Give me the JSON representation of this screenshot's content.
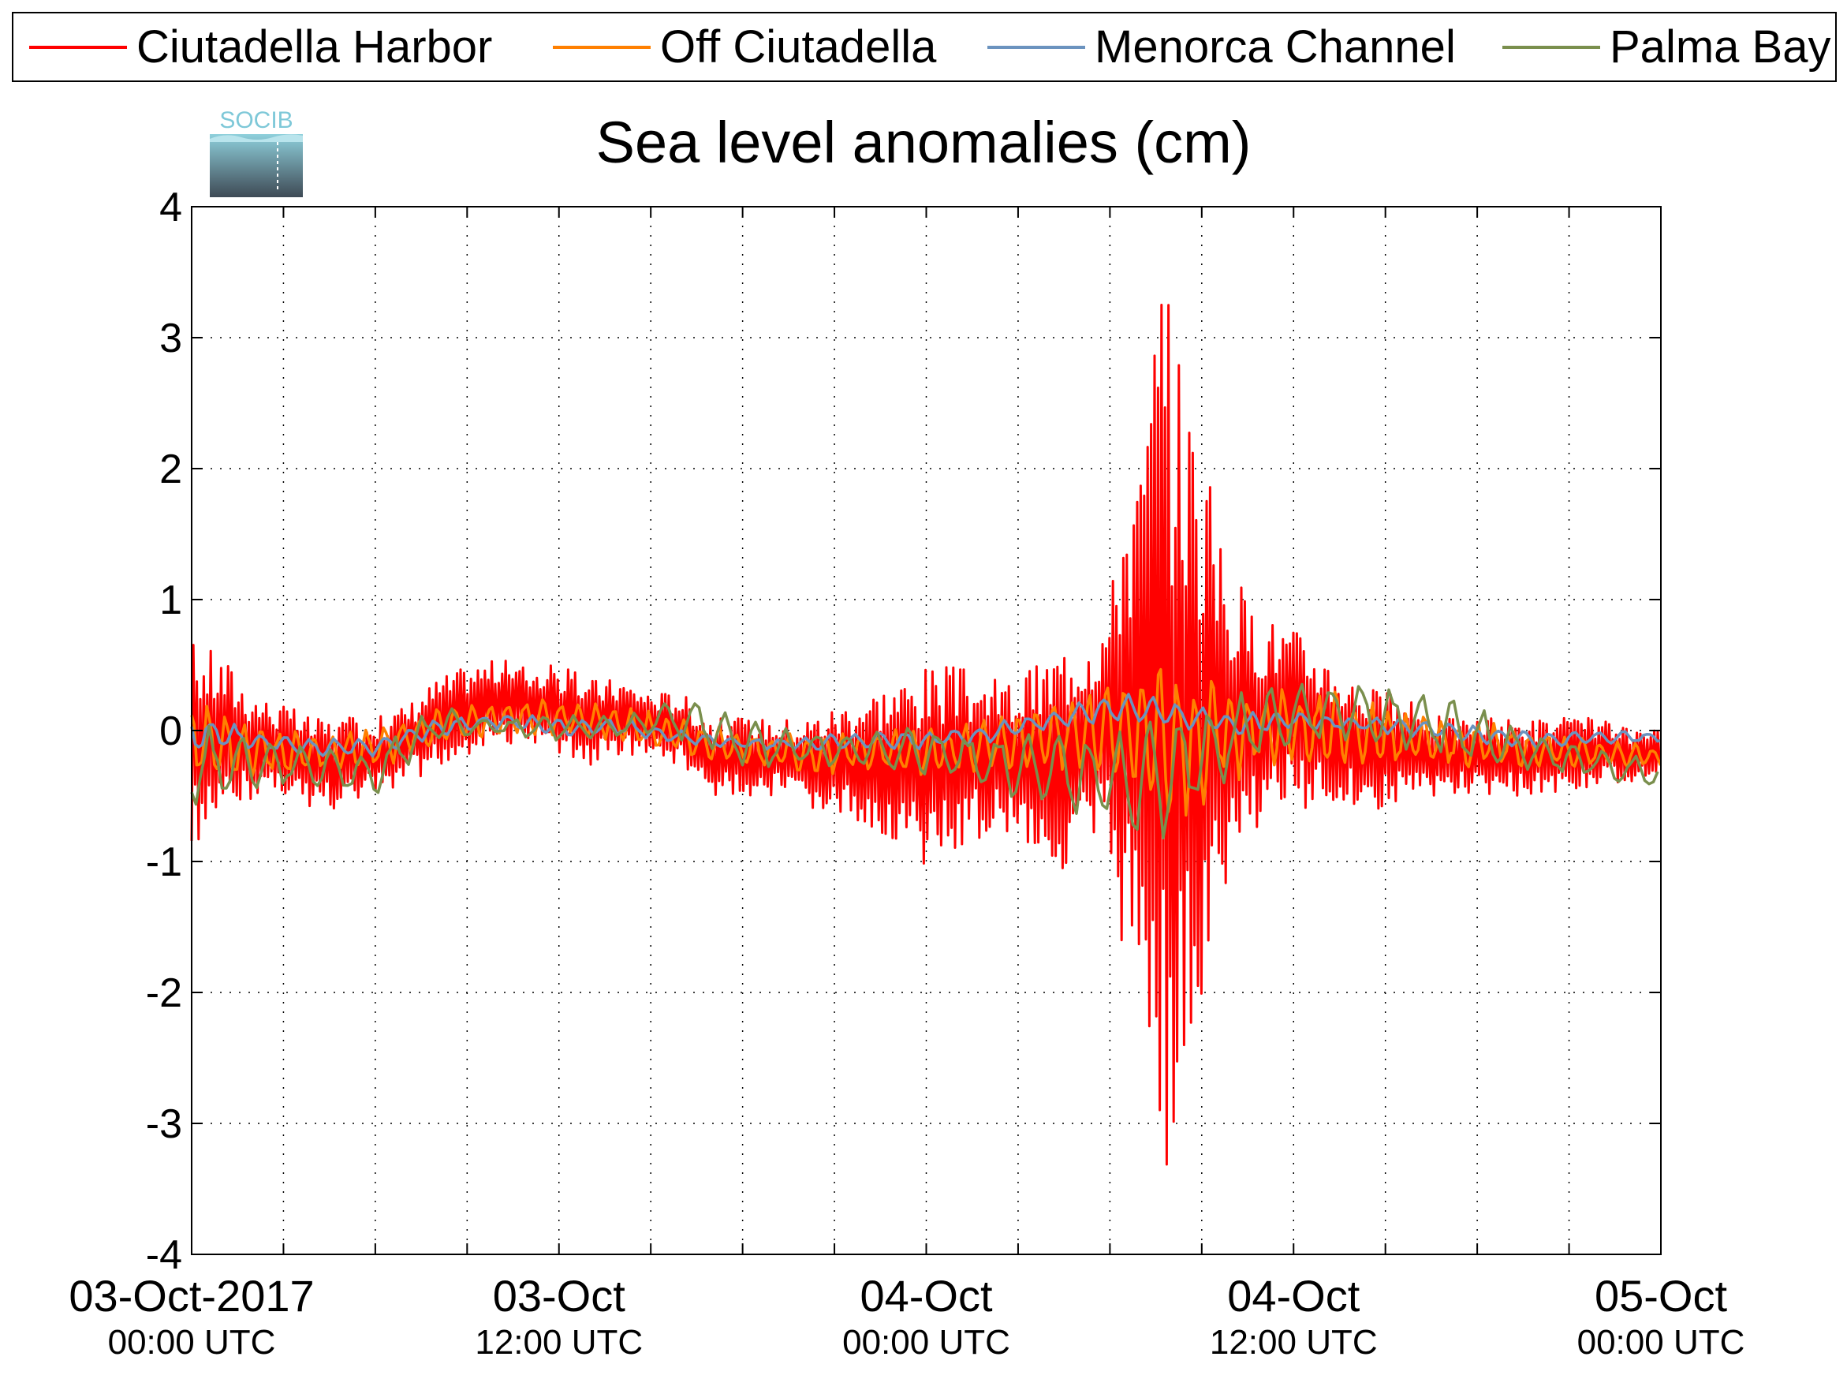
{
  "logo": {
    "text": "SOCIB",
    "colors": {
      "text": "#7ec8d8",
      "top": "#8fd0dc",
      "bottom": "#3e4a55"
    }
  },
  "chart_data": {
    "type": "line",
    "title": "Sea level anomalies (cm)",
    "xlabel": "",
    "ylabel": "",
    "ylim": [
      -4,
      4
    ],
    "xlim": [
      "2017-10-03T00:00Z",
      "2017-10-05T00:00Z"
    ],
    "grid": true,
    "legend_position": "top",
    "y_ticks": [
      "-4",
      "-3",
      "-2",
      "-1",
      "0",
      "1",
      "2",
      "3",
      "4"
    ],
    "x_ticks": [
      {
        "date": "03-Oct-2017",
        "time": "00:00 UTC"
      },
      {
        "date": "03-Oct",
        "time": "12:00 UTC"
      },
      {
        "date": "04-Oct",
        "time": "00:00 UTC"
      },
      {
        "date": "04-Oct",
        "time": "12:00 UTC"
      },
      {
        "date": "05-Oct",
        "time": "00:00 UTC"
      }
    ],
    "series": [
      {
        "name": "Ciutadella Harbor",
        "color": "#ff0000",
        "x": [
          "2017-10-03T00:00Z",
          "2017-10-03T01:00Z",
          "2017-10-03T02:00Z",
          "2017-10-03T03:00Z",
          "2017-10-03T04:00Z",
          "2017-10-03T05:00Z",
          "2017-10-03T06:00Z",
          "2017-10-03T07:00Z",
          "2017-10-03T08:00Z",
          "2017-10-03T09:00Z",
          "2017-10-03T10:00Z",
          "2017-10-03T11:00Z",
          "2017-10-03T12:00Z",
          "2017-10-03T13:00Z",
          "2017-10-03T14:00Z",
          "2017-10-03T15:00Z",
          "2017-10-03T16:00Z",
          "2017-10-03T17:00Z",
          "2017-10-03T18:00Z",
          "2017-10-03T19:00Z",
          "2017-10-03T20:00Z",
          "2017-10-03T21:00Z",
          "2017-10-03T22:00Z",
          "2017-10-03T23:00Z",
          "2017-10-04T00:00Z",
          "2017-10-04T01:00Z",
          "2017-10-04T02:00Z",
          "2017-10-04T03:00Z",
          "2017-10-04T04:00Z",
          "2017-10-04T05:00Z",
          "2017-10-04T06:00Z",
          "2017-10-04T06:30Z",
          "2017-10-04T07:00Z",
          "2017-10-04T07:30Z",
          "2017-10-04T08:00Z",
          "2017-10-04T08:30Z",
          "2017-10-04T09:00Z",
          "2017-10-04T09:30Z",
          "2017-10-04T10:00Z",
          "2017-10-04T10:30Z",
          "2017-10-04T11:00Z",
          "2017-10-04T12:00Z",
          "2017-10-04T13:00Z",
          "2017-10-04T14:00Z",
          "2017-10-04T15:00Z",
          "2017-10-04T16:00Z",
          "2017-10-04T17:00Z",
          "2017-10-04T18:00Z",
          "2017-10-04T19:00Z",
          "2017-10-04T20:00Z",
          "2017-10-04T21:00Z",
          "2017-10-04T22:00Z",
          "2017-10-04T23:00Z",
          "2017-10-05T00:00Z"
        ],
        "min": [
          -0.9,
          -0.8,
          -0.5,
          -0.5,
          -0.6,
          -0.6,
          -0.5,
          -0.4,
          -0.3,
          -0.2,
          -0.1,
          -0.1,
          -0.2,
          -0.3,
          -0.2,
          -0.2,
          -0.3,
          -0.5,
          -0.5,
          -0.5,
          -0.6,
          -0.7,
          -0.7,
          -0.9,
          -1.05,
          -0.9,
          -0.8,
          -0.8,
          -1.1,
          -1.0,
          -1.0,
          -2.0,
          -2.1,
          -2.8,
          -3.75,
          -2.7,
          -2.5,
          -1.6,
          -1.3,
          -0.9,
          -0.7,
          -0.6,
          -0.6,
          -0.6,
          -0.6,
          -0.5,
          -0.5,
          -0.5,
          -0.5,
          -0.5,
          -0.5,
          -0.4,
          -0.4,
          -0.3
        ],
        "max": [
          0.7,
          0.6,
          0.3,
          0.2,
          0.1,
          0.1,
          0.1,
          0.2,
          0.4,
          0.5,
          0.55,
          0.5,
          0.5,
          0.4,
          0.4,
          0.3,
          0.3,
          0.1,
          0.1,
          0.1,
          0.1,
          0.2,
          0.3,
          0.4,
          0.5,
          0.5,
          0.4,
          0.4,
          0.6,
          0.8,
          1.0,
          2.1,
          2.1,
          3.3,
          3.42,
          2.7,
          2.3,
          1.6,
          1.3,
          1.0,
          0.9,
          0.8,
          0.6,
          0.4,
          0.3,
          0.2,
          0.1,
          0.1,
          0.1,
          0.1,
          0.1,
          0.1,
          0.0,
          0.0
        ]
      },
      {
        "name": "Off Ciutadella",
        "color": "#ff8000",
        "x": [
          "2017-10-03T00:00Z",
          "2017-10-03T02:00Z",
          "2017-10-03T04:00Z",
          "2017-10-03T06:00Z",
          "2017-10-03T08:00Z",
          "2017-10-03T10:00Z",
          "2017-10-03T12:00Z",
          "2017-10-03T14:00Z",
          "2017-10-03T16:00Z",
          "2017-10-03T18:00Z",
          "2017-10-03T20:00Z",
          "2017-10-03T22:00Z",
          "2017-10-04T00:00Z",
          "2017-10-04T02:00Z",
          "2017-10-04T04:00Z",
          "2017-10-04T06:00Z",
          "2017-10-04T07:00Z",
          "2017-10-04T08:00Z",
          "2017-10-04T09:00Z",
          "2017-10-04T10:00Z",
          "2017-10-04T12:00Z",
          "2017-10-04T14:00Z",
          "2017-10-04T16:00Z",
          "2017-10-04T18:00Z",
          "2017-10-04T20:00Z",
          "2017-10-04T22:00Z",
          "2017-10-05T00:00Z"
        ],
        "min": [
          -0.5,
          -0.4,
          -0.35,
          -0.3,
          -0.15,
          -0.05,
          -0.05,
          -0.1,
          -0.2,
          -0.3,
          -0.35,
          -0.35,
          -0.4,
          -0.35,
          -0.3,
          -0.4,
          -0.6,
          -0.8,
          -0.6,
          -0.4,
          -0.3,
          -0.3,
          -0.3,
          -0.3,
          -0.3,
          -0.3,
          -0.3
        ],
        "max": [
          0.35,
          0.1,
          0.0,
          0.05,
          0.2,
          0.25,
          0.25,
          0.2,
          0.1,
          0.0,
          0.0,
          0.05,
          0.05,
          0.1,
          0.2,
          0.4,
          0.6,
          0.6,
          0.5,
          0.4,
          0.35,
          0.3,
          0.15,
          0.1,
          0.0,
          -0.05,
          -0.1
        ]
      },
      {
        "name": "Menorca Channel",
        "color": "#6b93bf",
        "x": [
          "2017-10-03T00:00Z",
          "2017-10-03T02:00Z",
          "2017-10-03T04:00Z",
          "2017-10-03T06:00Z",
          "2017-10-03T08:00Z",
          "2017-10-03T10:00Z",
          "2017-10-03T12:00Z",
          "2017-10-03T14:00Z",
          "2017-10-03T16:00Z",
          "2017-10-03T18:00Z",
          "2017-10-03T20:00Z",
          "2017-10-03T22:00Z",
          "2017-10-04T00:00Z",
          "2017-10-04T02:00Z",
          "2017-10-04T04:00Z",
          "2017-10-04T06:00Z",
          "2017-10-04T08:00Z",
          "2017-10-04T10:00Z",
          "2017-10-04T12:00Z",
          "2017-10-04T14:00Z",
          "2017-10-04T16:00Z",
          "2017-10-04T18:00Z",
          "2017-10-04T20:00Z",
          "2017-10-04T22:00Z",
          "2017-10-05T00:00Z"
        ],
        "min": [
          -0.2,
          -0.15,
          -0.2,
          -0.2,
          -0.05,
          0.0,
          -0.05,
          -0.05,
          -0.1,
          -0.15,
          -0.15,
          -0.15,
          -0.15,
          -0.1,
          0.0,
          0.05,
          0.0,
          -0.05,
          0.0,
          0.0,
          -0.05,
          -0.1,
          -0.15,
          -0.1,
          -0.1
        ],
        "max": [
          0.2,
          0.0,
          -0.05,
          -0.05,
          0.1,
          0.15,
          0.1,
          0.1,
          0.0,
          -0.05,
          -0.05,
          0.0,
          0.0,
          0.05,
          0.15,
          0.3,
          0.25,
          0.15,
          0.15,
          0.1,
          0.1,
          0.05,
          0.0,
          0.0,
          0.0
        ]
      },
      {
        "name": "Palma Bay",
        "color": "#7a8f4d",
        "x": [
          "2017-10-03T00:00Z",
          "2017-10-03T02:00Z",
          "2017-10-03T04:00Z",
          "2017-10-03T06:00Z",
          "2017-10-03T08:00Z",
          "2017-10-03T10:00Z",
          "2017-10-03T12:00Z",
          "2017-10-03T14:00Z",
          "2017-10-03T16:00Z",
          "2017-10-03T18:00Z",
          "2017-10-03T20:00Z",
          "2017-10-03T22:00Z",
          "2017-10-04T00:00Z",
          "2017-10-04T02:00Z",
          "2017-10-04T04:00Z",
          "2017-10-04T06:00Z",
          "2017-10-04T08:00Z",
          "2017-10-04T10:00Z",
          "2017-10-04T12:00Z",
          "2017-10-04T14:00Z",
          "2017-10-04T16:00Z",
          "2017-10-04T18:00Z",
          "2017-10-04T20:00Z",
          "2017-10-04T22:00Z",
          "2017-10-05T00:00Z"
        ],
        "min": [
          -0.65,
          -0.5,
          -0.45,
          -0.55,
          -0.1,
          -0.05,
          -0.1,
          -0.05,
          -0.1,
          -0.3,
          -0.3,
          -0.3,
          -0.4,
          -0.5,
          -0.6,
          -0.85,
          -0.9,
          -0.4,
          -0.15,
          -0.1,
          -0.2,
          -0.3,
          -0.35,
          -0.4,
          -0.5
        ],
        "max": [
          0.1,
          0.0,
          -0.1,
          -0.1,
          0.2,
          0.1,
          0.15,
          0.1,
          0.3,
          0.1,
          0.0,
          0.0,
          0.1,
          0.0,
          0.0,
          0.1,
          0.2,
          0.3,
          0.4,
          0.4,
          0.35,
          0.2,
          0.0,
          -0.1,
          -0.2
        ]
      }
    ]
  }
}
